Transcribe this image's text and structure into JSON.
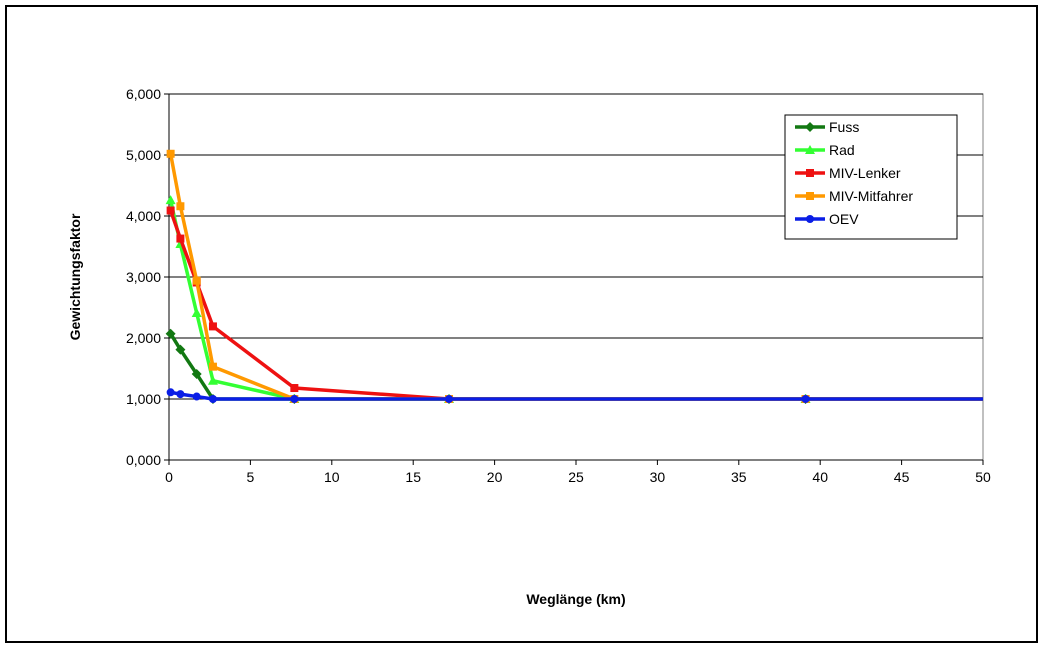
{
  "chart_data": {
    "type": "line",
    "title": "",
    "xlabel": "Weglänge (km)",
    "ylabel": "Gewichtungsfaktor",
    "xlim": [
      0,
      50
    ],
    "ylim": [
      0,
      6
    ],
    "x_ticks": [
      0,
      5,
      10,
      15,
      20,
      25,
      30,
      35,
      40,
      45,
      50
    ],
    "x_tick_labels": [
      "0",
      "5",
      "10",
      "15",
      "20",
      "25",
      "30",
      "35",
      "40",
      "45",
      "50"
    ],
    "y_ticks": [
      0,
      1,
      2,
      3,
      4,
      5,
      6
    ],
    "y_tick_labels": [
      "0,000",
      "1,000",
      "2,000",
      "3,000",
      "4,000",
      "5,000",
      "6,000"
    ],
    "grid": "horizontal major gridlines",
    "legend_position": "top-right",
    "series": [
      {
        "name": "Fuss",
        "color": "#127812",
        "marker": "diamond",
        "x": [
          0.1,
          0.7,
          1.7,
          2.7,
          7.7,
          17.2,
          39.1,
          50
        ],
        "y": [
          2.07,
          1.81,
          1.41,
          1.0,
          1.0,
          1.0,
          1.0,
          1.0
        ]
      },
      {
        "name": "Rad",
        "color": "#33ff33",
        "marker": "triangle",
        "x": [
          0.1,
          0.7,
          1.7,
          2.7,
          7.7,
          17.2,
          39.1,
          50
        ],
        "y": [
          4.26,
          3.54,
          2.41,
          1.3,
          1.0,
          1.0,
          1.0,
          1.0
        ]
      },
      {
        "name": "MIV-Lenker",
        "color": "#ee1111",
        "marker": "square",
        "x": [
          0.1,
          0.7,
          1.7,
          2.7,
          7.7,
          17.2,
          39.1,
          50
        ],
        "y": [
          4.09,
          3.63,
          2.91,
          2.19,
          1.18,
          1.0,
          1.0,
          1.0
        ]
      },
      {
        "name": "MIV-Mitfahrer",
        "color": "#ff9900",
        "marker": "square",
        "x": [
          0.1,
          0.7,
          1.7,
          2.7,
          7.7,
          17.2,
          39.1,
          50
        ],
        "y": [
          5.02,
          4.16,
          2.94,
          1.53,
          1.0,
          1.0,
          1.0,
          1.0
        ]
      },
      {
        "name": "OEV",
        "color": "#0a1ee6",
        "marker": "circle",
        "x": [
          0.1,
          0.7,
          1.7,
          2.7,
          7.7,
          17.2,
          39.1,
          50
        ],
        "y": [
          1.11,
          1.08,
          1.04,
          1.0,
          1.0,
          1.0,
          1.0,
          1.0
        ]
      }
    ]
  }
}
